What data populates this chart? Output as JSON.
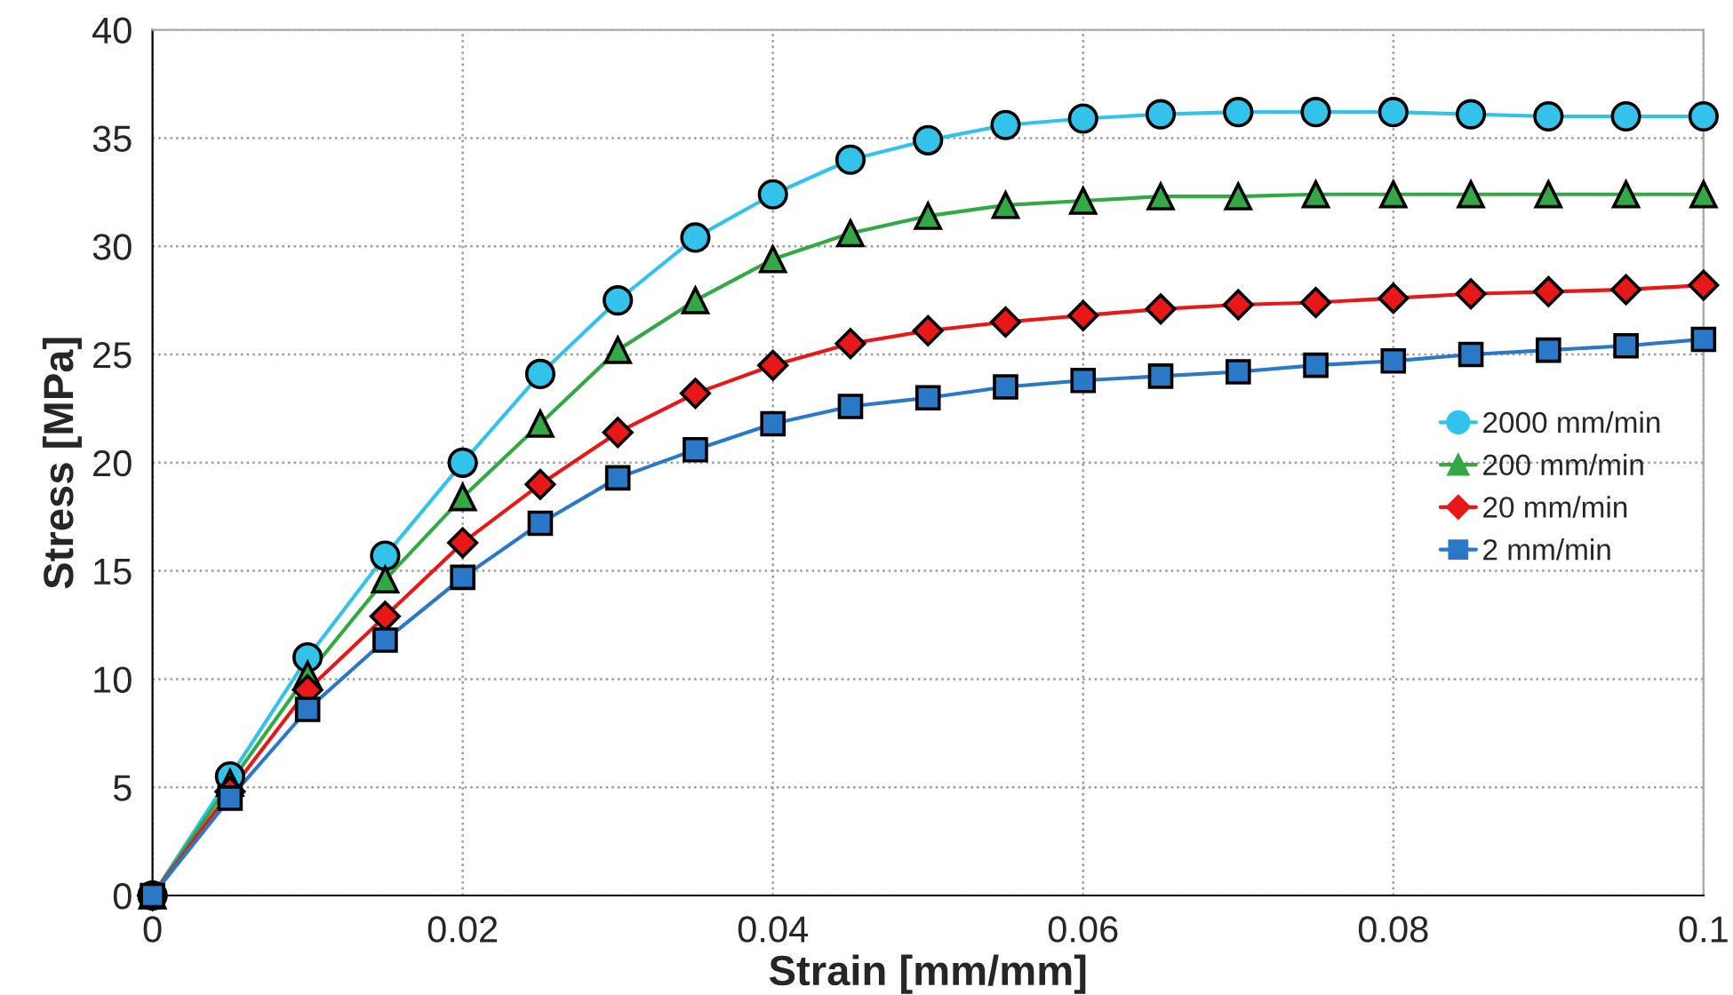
{
  "chart_data": {
    "type": "line",
    "xlabel": "Strain [mm/mm]",
    "ylabel": "Stress [MPa]",
    "x": [
      0,
      0.005,
      0.01,
      0.015,
      0.02,
      0.025,
      0.03,
      0.035,
      0.04,
      0.045,
      0.05,
      0.055,
      0.06,
      0.065,
      0.07,
      0.075,
      0.08,
      0.085,
      0.09,
      0.095,
      0.1
    ],
    "series": [
      {
        "name": "2000 mm/min",
        "color": "#33c3ea",
        "marker": "circle",
        "values": [
          0,
          5.5,
          11.0,
          15.7,
          20.0,
          24.1,
          27.5,
          30.4,
          32.4,
          34.0,
          34.9,
          35.6,
          35.9,
          36.1,
          36.2,
          36.2,
          36.2,
          36.1,
          36.0,
          36.0,
          36.0
        ]
      },
      {
        "name": "200 mm/min",
        "color": "#33a844",
        "marker": "triangle",
        "values": [
          0,
          5.2,
          10.2,
          14.6,
          18.4,
          21.8,
          25.2,
          27.5,
          29.4,
          30.6,
          31.4,
          31.9,
          32.1,
          32.3,
          32.3,
          32.4,
          32.4,
          32.4,
          32.4,
          32.4,
          32.4
        ]
      },
      {
        "name": "20 mm/min",
        "color": "#e81818",
        "marker": "diamond",
        "values": [
          0,
          4.8,
          9.5,
          12.9,
          16.3,
          19.0,
          21.4,
          23.2,
          24.5,
          25.5,
          26.1,
          26.5,
          26.8,
          27.1,
          27.3,
          27.4,
          27.6,
          27.8,
          27.9,
          28.0,
          28.2
        ]
      },
      {
        "name": "2 mm/min",
        "color": "#2a78c6",
        "marker": "square",
        "values": [
          0,
          4.5,
          8.6,
          11.8,
          14.7,
          17.2,
          19.3,
          20.6,
          21.8,
          22.6,
          23.0,
          23.5,
          23.8,
          24.0,
          24.2,
          24.5,
          24.7,
          25.0,
          25.2,
          25.4,
          25.7
        ]
      }
    ],
    "xlim": [
      0,
      0.1
    ],
    "ylim": [
      0,
      40
    ],
    "xticks": [
      0,
      0.02,
      0.04,
      0.06,
      0.08,
      0.1
    ],
    "yticks": [
      0,
      5,
      10,
      15,
      20,
      25,
      30,
      35,
      40
    ],
    "grid": true,
    "legend": "right",
    "line_style": "solid"
  }
}
